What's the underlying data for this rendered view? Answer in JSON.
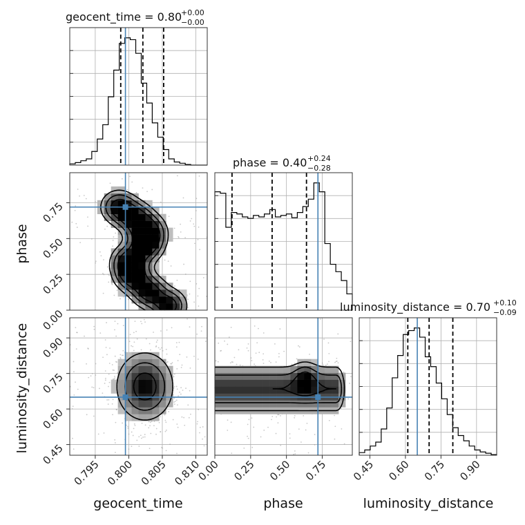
{
  "chart_data": {
    "type": "corner",
    "parameters": [
      "geocent_time",
      "phase",
      "luminosity_distance"
    ],
    "truths": {
      "geocent_time": 0.7995,
      "phase": 0.72,
      "luminosity_distance": 0.65
    },
    "titles": [
      {
        "param": "geocent_time",
        "prefix": "geocent_time = 0.80",
        "plus": "+0.00",
        "minus": "−0.00"
      },
      {
        "param": "phase",
        "prefix": "phase = 0.40",
        "plus": "+0.24",
        "minus": "−0.28"
      },
      {
        "param": "luminosity_distance",
        "prefix": "luminosity_distance = 0.70",
        "plus": "+0.10",
        "minus": "−0.09"
      }
    ],
    "axes": {
      "geocent_time": {
        "range": [
          0.7912,
          0.8117
        ],
        "ticks": [
          "0.795",
          "0.800",
          "0.805",
          "0.810"
        ],
        "tick_values": [
          0.795,
          0.8,
          0.805,
          0.81
        ]
      },
      "phase": {
        "range": [
          0.0,
          0.96
        ],
        "ticks": [
          "0.00",
          "0.25",
          "0.50",
          "0.75"
        ],
        "tick_values": [
          0.0,
          0.25,
          0.5,
          0.75
        ]
      },
      "luminosity_distance": {
        "range": [
          0.405,
          0.985
        ],
        "ticks": [
          "0.45",
          "0.60",
          "0.75",
          "0.90"
        ],
        "tick_values": [
          0.45,
          0.6,
          0.75,
          0.9
        ]
      }
    },
    "quantiles": {
      "geocent_time": [
        0.7988,
        0.8021,
        0.8052
      ],
      "phase": [
        0.12,
        0.4,
        0.64
      ],
      "luminosity_distance": [
        0.61,
        0.7,
        0.8
      ]
    },
    "histograms": {
      "geocent_time": {
        "edges_start": 0.7912,
        "bin_width": 0.00082,
        "counts": [
          2,
          4,
          7,
          10,
          22,
          42,
          65,
          110,
          153,
          196,
          205,
          202,
          180,
          132,
          100,
          68,
          45,
          25,
          10,
          5,
          3,
          1,
          0,
          0,
          0
        ]
      },
      "phase": {
        "edges_start": 0.0,
        "bin_width": 0.0384,
        "counts": [
          160,
          158,
          112,
          132,
          130,
          126,
          124,
          128,
          126,
          130,
          136,
          126,
          128,
          130,
          125,
          132,
          140,
          150,
          172,
          160,
          90,
          62,
          52,
          40,
          22
        ]
      },
      "luminosity_distance": {
        "edges_start": 0.405,
        "bin_width": 0.0232,
        "counts": [
          4,
          8,
          14,
          20,
          40,
          72,
          118,
          152,
          184,
          190,
          194,
          180,
          150,
          135,
          110,
          86,
          62,
          42,
          30,
          22,
          14,
          8,
          5,
          3,
          1
        ]
      }
    }
  }
}
